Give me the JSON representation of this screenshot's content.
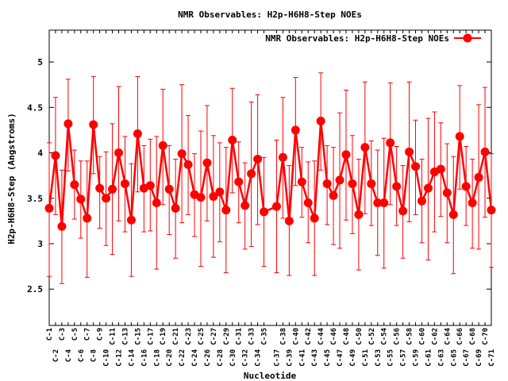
{
  "chart_data": {
    "type": "line",
    "title": "NMR Observables: H2p-H6H8-Step NOEs",
    "xlabel": "Nucleotide",
    "ylabel": "H2p-H6H8-Step (Angstroms)",
    "ylim": [
      2.1,
      5.35
    ],
    "yticks": [
      "2.5",
      "3",
      "3.5",
      "4",
      "4.5",
      "5"
    ],
    "ytick_values": [
      2.5,
      3,
      3.5,
      4,
      4.5,
      5
    ],
    "grid": false,
    "legend_position": "top-right",
    "series_color": "#ff0000",
    "series": [
      {
        "name": "NMR Observables: H2p-H6H8-Step NOEs",
        "x": [
          1,
          2,
          3,
          4,
          5,
          6,
          7,
          8,
          9,
          10,
          11,
          12,
          13,
          14,
          15,
          16,
          17,
          18,
          19,
          20,
          21,
          22,
          23,
          24,
          25,
          26,
          27,
          28,
          29,
          30,
          31,
          32,
          33,
          34,
          35,
          37,
          38,
          39,
          40,
          41,
          42,
          43,
          44,
          45,
          46,
          47,
          48,
          49,
          50,
          51,
          52,
          53,
          54,
          55,
          56,
          57,
          58,
          59,
          60,
          61,
          62,
          63,
          64,
          65,
          66,
          67,
          68,
          69,
          70,
          71
        ],
        "labels": [
          "C-1",
          "C-2",
          "C-3",
          "C-4",
          "C-5",
          "C-6",
          "C-7",
          "C-8",
          "C-9",
          "C-10",
          "C-11",
          "C-12",
          "C-13",
          "C-14",
          "C-15",
          "C-16",
          "C-17",
          "C-18",
          "C-19",
          "C-20",
          "C-21",
          "C-22",
          "C-23",
          "C-24",
          "C-25",
          "C-26",
          "C-27",
          "C-28",
          "C-29",
          "C-30",
          "C-31",
          "C-32",
          "C-33",
          "C-34",
          "C-35",
          "C-37",
          "C-38",
          "C-39",
          "C-40",
          "C-41",
          "C-42",
          "C-43",
          "C-44",
          "C-45",
          "C-46",
          "C-47",
          "C-48",
          "C-49",
          "C-50",
          "C-51",
          "C-52",
          "C-53",
          "C-54",
          "C-55",
          "C-56",
          "C-57",
          "C-58",
          "C-59",
          "C-60",
          "C-61",
          "C-62",
          "C-63",
          "C-64",
          "C-65",
          "C-66",
          "C-67",
          "C-68",
          "C-69",
          "C-70",
          "C-71"
        ],
        "values": [
          3.39,
          3.97,
          3.19,
          4.32,
          3.65,
          3.49,
          3.28,
          4.31,
          3.61,
          3.5,
          3.6,
          4.0,
          3.66,
          3.26,
          4.21,
          3.61,
          3.64,
          3.45,
          4.08,
          3.6,
          3.39,
          3.99,
          3.87,
          3.54,
          3.51,
          3.89,
          3.52,
          3.57,
          3.37,
          4.14,
          3.68,
          3.42,
          3.77,
          3.93,
          3.35,
          3.41,
          3.95,
          3.25,
          4.25,
          3.68,
          3.45,
          3.28,
          4.35,
          3.66,
          3.53,
          3.7,
          3.98,
          3.66,
          3.32,
          4.06,
          3.66,
          3.45,
          3.45,
          4.11,
          3.63,
          3.36,
          4.01,
          3.85,
          3.47,
          3.61,
          3.79,
          3.82,
          3.56,
          3.32,
          4.18,
          3.63,
          3.45,
          3.73,
          4.01,
          3.37
        ],
        "upper": [
          4.11,
          4.61,
          3.81,
          4.81,
          4.03,
          3.91,
          3.91,
          4.84,
          3.96,
          4.01,
          4.32,
          4.73,
          4.18,
          3.88,
          4.84,
          4.08,
          4.15,
          4.18,
          4.7,
          4.08,
          3.93,
          4.75,
          4.41,
          3.99,
          4.24,
          4.52,
          4.19,
          4.11,
          4.06,
          4.71,
          4.12,
          3.89,
          4.56,
          4.64,
          3.95,
          4.14,
          4.61,
          3.86,
          4.83,
          4.06,
          3.9,
          3.91,
          4.88,
          4.08,
          4.06,
          4.44,
          4.69,
          4.19,
          3.93,
          4.78,
          4.13,
          4.03,
          4.16,
          4.77,
          4.07,
          3.86,
          4.78,
          4.36,
          3.93,
          4.38,
          4.45,
          4.33,
          4.1,
          3.96,
          4.74,
          4.07,
          3.93,
          4.53,
          4.72,
          3.99
        ],
        "lower": [
          2.64,
          3.32,
          2.56,
          3.8,
          3.27,
          3.06,
          2.63,
          3.77,
          3.17,
          2.98,
          2.88,
          3.25,
          3.13,
          2.64,
          3.57,
          3.13,
          3.14,
          2.72,
          3.43,
          3.1,
          2.84,
          3.23,
          3.32,
          3.08,
          2.75,
          3.25,
          2.85,
          3.02,
          2.68,
          3.56,
          3.23,
          2.94,
          2.97,
          3.21,
          2.75,
          2.68,
          3.28,
          2.65,
          3.64,
          3.29,
          3.01,
          2.65,
          3.81,
          3.21,
          2.99,
          2.95,
          3.26,
          3.11,
          2.71,
          3.33,
          3.2,
          2.87,
          2.73,
          3.43,
          3.2,
          2.84,
          3.24,
          3.32,
          3.01,
          2.82,
          3.13,
          3.3,
          3.01,
          2.67,
          3.6,
          3.2,
          2.95,
          2.94,
          3.29,
          2.74
        ]
      }
    ],
    "xlim": [
      1,
      71
    ]
  }
}
